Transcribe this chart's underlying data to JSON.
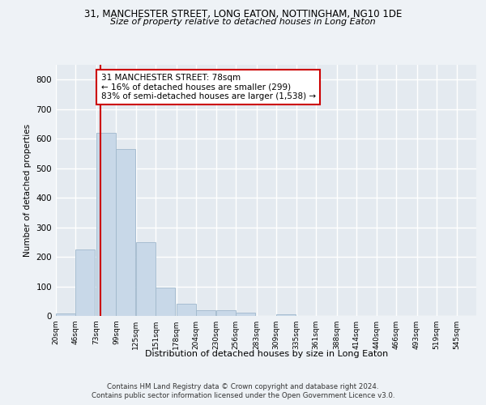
{
  "title_line1": "31, MANCHESTER STREET, LONG EATON, NOTTINGHAM, NG10 1DE",
  "title_line2": "Size of property relative to detached houses in Long Eaton",
  "xlabel": "Distribution of detached houses by size in Long Eaton",
  "ylabel": "Number of detached properties",
  "bar_color": "#c8d8e8",
  "bar_edge_color": "#a0b8cc",
  "vline_color": "#cc0000",
  "vline_x": 78,
  "annotation_text": "31 MANCHESTER STREET: 78sqm\n← 16% of detached houses are smaller (299)\n83% of semi-detached houses are larger (1,538) →",
  "annotation_box_color": "#ffffff",
  "annotation_box_edge": "#cc0000",
  "categories": [
    "20sqm",
    "46sqm",
    "73sqm",
    "99sqm",
    "125sqm",
    "151sqm",
    "178sqm",
    "204sqm",
    "230sqm",
    "256sqm",
    "283sqm",
    "309sqm",
    "335sqm",
    "361sqm",
    "388sqm",
    "414sqm",
    "440sqm",
    "466sqm",
    "493sqm",
    "519sqm",
    "545sqm"
  ],
  "bin_edges": [
    20,
    46,
    73,
    99,
    125,
    151,
    178,
    204,
    230,
    256,
    283,
    309,
    335,
    361,
    388,
    414,
    440,
    466,
    493,
    519,
    545
  ],
  "bin_width": 26,
  "values": [
    8,
    225,
    620,
    565,
    250,
    95,
    42,
    18,
    18,
    10,
    0,
    5,
    0,
    0,
    0,
    0,
    0,
    0,
    0,
    0,
    0
  ],
  "ylim": [
    0,
    850
  ],
  "yticks": [
    0,
    100,
    200,
    300,
    400,
    500,
    600,
    700,
    800
  ],
  "footer1": "Contains HM Land Registry data © Crown copyright and database right 2024.",
  "footer2": "Contains public sector information licensed under the Open Government Licence v3.0.",
  "background_color": "#eef2f6",
  "plot_bg_color": "#e4eaf0",
  "grid_color": "#ffffff"
}
